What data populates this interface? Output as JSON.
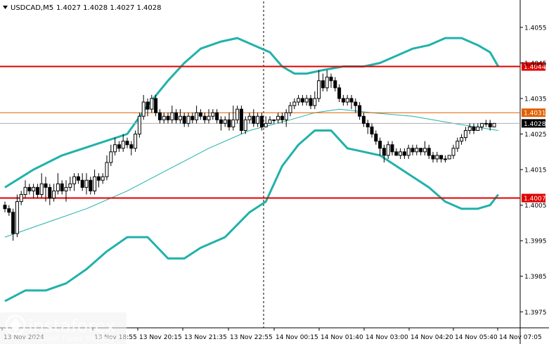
{
  "header": {
    "symbol": "USDCAD,M5",
    "ohlc": "1.4027 1.4028 1.4027 1.4028"
  },
  "watermark": {
    "brand": "instaforex",
    "tagline": "Instant Forex Trading"
  },
  "colors": {
    "background": "#ffffff",
    "candles": "#000000",
    "bands": "#20b2aa",
    "ma": "#20b2aa",
    "level_red": "#e00000",
    "level_orange": "#e06000",
    "price_line": "#b0b0b0"
  },
  "chart_data": {
    "type": "candlestick",
    "symbol": "USDCAD",
    "timeframe": "M5",
    "grid": false,
    "ylim": [
      1.39705,
      1.40627
    ],
    "y_ticks": [
      "1.4055",
      "1.4045",
      "1.4035",
      "1.4025",
      "1.4015",
      "1.4005",
      "1.3995",
      "1.3985",
      "1.3975"
    ],
    "x_ticks": [
      "13 Nov 2024",
      "13 Nov 18:55",
      "13 Nov 20:15",
      "13 Nov 21:35",
      "13 Nov 22:55",
      "14 Nov 00:15",
      "14 Nov 01:40",
      "14 Nov 03:00",
      "14 Nov 04:20",
      "14 Nov 05:40",
      "14 Nov 07:05"
    ],
    "levels": [
      {
        "label": "1.4044",
        "value": 1.4044,
        "style": "red"
      },
      {
        "label": "1.4031",
        "value": 1.4031,
        "style": "orange"
      },
      {
        "label": "1.4028",
        "value": 1.4028,
        "style": "price"
      },
      {
        "label": "1.4007",
        "value": 1.4007,
        "style": "red"
      }
    ],
    "candles": [
      [
        1.4005,
        1.4004,
        1.4006,
        1.4003
      ],
      [
        1.4004,
        1.4003,
        1.4005,
        1.4002
      ],
      [
        1.4003,
        1.3997,
        1.4004,
        1.3995
      ],
      [
        1.3997,
        1.4006,
        1.4008,
        1.3996
      ],
      [
        1.4006,
        1.4008,
        1.4009,
        1.4005
      ],
      [
        1.4008,
        1.401,
        1.4012,
        1.4007
      ],
      [
        1.401,
        1.4009,
        1.4011,
        1.4008
      ],
      [
        1.4009,
        1.401,
        1.4011,
        1.4007
      ],
      [
        1.401,
        1.4008,
        1.4011,
        1.4007
      ],
      [
        1.4008,
        1.4011,
        1.4014,
        1.4007
      ],
      [
        1.4011,
        1.401,
        1.4013,
        1.4006
      ],
      [
        1.401,
        1.4007,
        1.4011,
        1.4005
      ],
      [
        1.4007,
        1.4009,
        1.4011,
        1.4006
      ],
      [
        1.4009,
        1.4011,
        1.4014,
        1.4008
      ],
      [
        1.4011,
        1.4009,
        1.4012,
        1.4008
      ],
      [
        1.4009,
        1.401,
        1.4012,
        1.4006
      ],
      [
        1.401,
        1.4011,
        1.4013,
        1.4009
      ],
      [
        1.4011,
        1.4013,
        1.4014,
        1.4009
      ],
      [
        1.4013,
        1.4012,
        1.4014,
        1.4011
      ],
      [
        1.4012,
        1.401,
        1.4014,
        1.4009
      ],
      [
        1.401,
        1.4012,
        1.4014,
        1.4008
      ],
      [
        1.4012,
        1.4009,
        1.4013,
        1.4008
      ],
      [
        1.4009,
        1.4013,
        1.4015,
        1.4008
      ],
      [
        1.4013,
        1.4012,
        1.4014,
        1.401
      ],
      [
        1.4012,
        1.4013,
        1.4014,
        1.4011
      ],
      [
        1.4013,
        1.4017,
        1.4019,
        1.4012
      ],
      [
        1.4017,
        1.402,
        1.4022,
        1.4016
      ],
      [
        1.402,
        1.4022,
        1.4024,
        1.4019
      ],
      [
        1.4022,
        1.4021,
        1.4023,
        1.402
      ],
      [
        1.4021,
        1.4023,
        1.4025,
        1.402
      ],
      [
        1.4023,
        1.4022,
        1.4024,
        1.4021
      ],
      [
        1.4022,
        1.4021,
        1.4023,
        1.4019
      ],
      [
        1.4021,
        1.4025,
        1.4026,
        1.402
      ],
      [
        1.4025,
        1.403,
        1.4031,
        1.4024
      ],
      [
        1.403,
        1.4034,
        1.4036,
        1.4029
      ],
      [
        1.4034,
        1.4032,
        1.4035,
        1.403
      ],
      [
        1.4032,
        1.4035,
        1.4036,
        1.4031
      ],
      [
        1.4035,
        1.4031,
        1.4036,
        1.403
      ],
      [
        1.4031,
        1.4029,
        1.4032,
        1.4028
      ],
      [
        1.4029,
        1.403,
        1.4031,
        1.4028
      ],
      [
        1.403,
        1.4029,
        1.4031,
        1.4028
      ],
      [
        1.4029,
        1.4031,
        1.4033,
        1.4028
      ],
      [
        1.4031,
        1.4029,
        1.4032,
        1.4028
      ],
      [
        1.4029,
        1.403,
        1.4032,
        1.4028
      ],
      [
        1.403,
        1.4028,
        1.4031,
        1.4027
      ],
      [
        1.4028,
        1.403,
        1.4031,
        1.4027
      ],
      [
        1.403,
        1.4029,
        1.4031,
        1.4028
      ],
      [
        1.4029,
        1.4031,
        1.4033,
        1.4028
      ],
      [
        1.4031,
        1.403,
        1.4032,
        1.4029
      ],
      [
        1.403,
        1.4029,
        1.4031,
        1.4028
      ],
      [
        1.4029,
        1.403,
        1.4032,
        1.4028
      ],
      [
        1.403,
        1.4031,
        1.4032,
        1.4029
      ],
      [
        1.4031,
        1.4029,
        1.4032,
        1.4028
      ],
      [
        1.4029,
        1.4028,
        1.403,
        1.4026
      ],
      [
        1.4028,
        1.4029,
        1.403,
        1.4027
      ],
      [
        1.4029,
        1.4027,
        1.4031,
        1.4026
      ],
      [
        1.4027,
        1.4029,
        1.4033,
        1.4026
      ],
      [
        1.4029,
        1.4032,
        1.4033,
        1.4028
      ],
      [
        1.4032,
        1.4026,
        1.4033,
        1.4025
      ],
      [
        1.4026,
        1.4029,
        1.403,
        1.4025
      ],
      [
        1.4029,
        1.403,
        1.4031,
        1.4028
      ],
      [
        1.403,
        1.4028,
        1.4032,
        1.4027
      ],
      [
        1.4028,
        1.403,
        1.4031,
        1.4027
      ],
      [
        1.403,
        1.4027,
        1.4031,
        1.4026
      ],
      [
        1.4027,
        1.4028,
        1.403,
        1.4027
      ],
      [
        1.4028,
        1.4029,
        1.403,
        1.4028
      ],
      [
        1.4029,
        1.4029,
        1.4029,
        1.4028
      ],
      [
        1.4029,
        1.403,
        1.4031,
        1.4028
      ],
      [
        1.403,
        1.4029,
        1.4031,
        1.4028
      ],
      [
        1.4029,
        1.4031,
        1.4032,
        1.4027
      ],
      [
        1.4031,
        1.4033,
        1.4034,
        1.403
      ],
      [
        1.4033,
        1.4034,
        1.4035,
        1.4032
      ],
      [
        1.4034,
        1.4035,
        1.4036,
        1.4033
      ],
      [
        1.4035,
        1.4034,
        1.4036,
        1.4033
      ],
      [
        1.4034,
        1.4035,
        1.4036,
        1.4033
      ],
      [
        1.4035,
        1.4033,
        1.4036,
        1.4032
      ],
      [
        1.4033,
        1.4035,
        1.4037,
        1.4032
      ],
      [
        1.4035,
        1.404,
        1.4043,
        1.4034
      ],
      [
        1.404,
        1.4038,
        1.4042,
        1.4037
      ],
      [
        1.4038,
        1.4041,
        1.4043,
        1.4037
      ],
      [
        1.4041,
        1.404,
        1.4042,
        1.4038
      ],
      [
        1.404,
        1.4038,
        1.4041,
        1.4037
      ],
      [
        1.4038,
        1.4035,
        1.4039,
        1.4034
      ],
      [
        1.4035,
        1.4034,
        1.4036,
        1.4033
      ],
      [
        1.4034,
        1.4035,
        1.4036,
        1.4033
      ],
      [
        1.4035,
        1.4034,
        1.4036,
        1.4032
      ],
      [
        1.4034,
        1.4033,
        1.4035,
        1.4031
      ],
      [
        1.4033,
        1.403,
        1.4034,
        1.4029
      ],
      [
        1.403,
        1.4028,
        1.4031,
        1.4027
      ],
      [
        1.4028,
        1.4027,
        1.4029,
        1.4025
      ],
      [
        1.4027,
        1.4025,
        1.4028,
        1.4024
      ],
      [
        1.4025,
        1.4023,
        1.4026,
        1.4022
      ],
      [
        1.4023,
        1.4021,
        1.4024,
        1.4019
      ],
      [
        1.4021,
        1.4019,
        1.4022,
        1.4017
      ],
      [
        1.4019,
        1.4022,
        1.4023,
        1.4018
      ],
      [
        1.4022,
        1.402,
        1.4023,
        1.4019
      ],
      [
        1.402,
        1.4019,
        1.4021,
        1.4019
      ],
      [
        1.4019,
        1.402,
        1.4021,
        1.4018
      ],
      [
        1.402,
        1.4019,
        1.4021,
        1.4018
      ],
      [
        1.4019,
        1.4021,
        1.4022,
        1.4018
      ],
      [
        1.4021,
        1.402,
        1.4022,
        1.4019
      ],
      [
        1.402,
        1.4021,
        1.4022,
        1.4019
      ],
      [
        1.4021,
        1.402,
        1.4021,
        1.4019
      ],
      [
        1.402,
        1.4021,
        1.4023,
        1.4019
      ],
      [
        1.4021,
        1.4019,
        1.4022,
        1.4018
      ],
      [
        1.4019,
        1.4018,
        1.402,
        1.4017
      ],
      [
        1.4018,
        1.4019,
        1.402,
        1.4017
      ],
      [
        1.4019,
        1.4018,
        1.4019,
        1.4017
      ],
      [
        1.4018,
        1.4018,
        1.4019,
        1.4017
      ],
      [
        1.4018,
        1.4019,
        1.4019,
        1.4018
      ],
      [
        1.4019,
        1.4021,
        1.4022,
        1.4018
      ],
      [
        1.4021,
        1.4023,
        1.4024,
        1.402
      ],
      [
        1.4023,
        1.4024,
        1.4025,
        1.4022
      ],
      [
        1.4024,
        1.4026,
        1.4027,
        1.4023
      ],
      [
        1.4026,
        1.4027,
        1.4028,
        1.4025
      ],
      [
        1.4027,
        1.4026,
        1.4028,
        1.4025
      ],
      [
        1.4026,
        1.4027,
        1.4028,
        1.4026
      ],
      [
        1.4027,
        1.4028,
        1.4028,
        1.4026
      ],
      [
        1.4028,
        1.4028,
        1.4029,
        1.4027
      ],
      [
        1.4028,
        1.4027,
        1.4029,
        1.4026
      ],
      [
        1.4027,
        1.4028,
        1.4028,
        1.4027
      ]
    ],
    "bollinger_upper": [
      [
        0,
        1.401
      ],
      [
        7,
        1.4015
      ],
      [
        14,
        1.4019
      ],
      [
        22,
        1.4022
      ],
      [
        30,
        1.4025
      ],
      [
        35,
        1.4033
      ],
      [
        40,
        1.404
      ],
      [
        44,
        1.4045
      ],
      [
        48,
        1.4049
      ],
      [
        53,
        1.4051
      ],
      [
        57,
        1.4052
      ],
      [
        61,
        1.405
      ],
      [
        65,
        1.4048
      ],
      [
        68,
        1.4044
      ],
      [
        71,
        1.4042
      ],
      [
        74,
        1.4042
      ],
      [
        78,
        1.4043
      ],
      [
        83,
        1.4044
      ],
      [
        88,
        1.4044
      ],
      [
        92,
        1.4045
      ],
      [
        96,
        1.4047
      ],
      [
        100,
        1.4049
      ],
      [
        104,
        1.405
      ],
      [
        108,
        1.4052
      ],
      [
        112,
        1.4052
      ],
      [
        116,
        1.405
      ],
      [
        119,
        1.4048
      ],
      [
        121,
        1.4044
      ]
    ],
    "bollinger_middle": [
      [
        0,
        1.3996
      ],
      [
        10,
        1.4
      ],
      [
        20,
        1.4004
      ],
      [
        30,
        1.4009
      ],
      [
        40,
        1.4015
      ],
      [
        50,
        1.4021
      ],
      [
        60,
        1.4026
      ],
      [
        70,
        1.4029
      ],
      [
        76,
        1.4031
      ],
      [
        82,
        1.4032
      ],
      [
        90,
        1.4031
      ],
      [
        100,
        1.403
      ],
      [
        110,
        1.4028
      ],
      [
        121,
        1.4026
      ]
    ],
    "bollinger_lower": [
      [
        0,
        1.3978
      ],
      [
        5,
        1.3981
      ],
      [
        10,
        1.3981
      ],
      [
        15,
        1.3983
      ],
      [
        20,
        1.3987
      ],
      [
        25,
        1.3992
      ],
      [
        30,
        1.3996
      ],
      [
        35,
        1.3996
      ],
      [
        40,
        1.399
      ],
      [
        44,
        1.399
      ],
      [
        48,
        1.3993
      ],
      [
        54,
        1.3996
      ],
      [
        60,
        1.4003
      ],
      [
        64,
        1.4006
      ],
      [
        68,
        1.4016
      ],
      [
        72,
        1.4022
      ],
      [
        76,
        1.4026
      ],
      [
        80,
        1.4026
      ],
      [
        84,
        1.4021
      ],
      [
        88,
        1.402
      ],
      [
        92,
        1.4019
      ],
      [
        96,
        1.4016
      ],
      [
        100,
        1.4013
      ],
      [
        104,
        1.401
      ],
      [
        108,
        1.4006
      ],
      [
        112,
        1.4004
      ],
      [
        116,
        1.4004
      ],
      [
        119,
        1.4005
      ],
      [
        121,
        1.4008
      ]
    ]
  }
}
